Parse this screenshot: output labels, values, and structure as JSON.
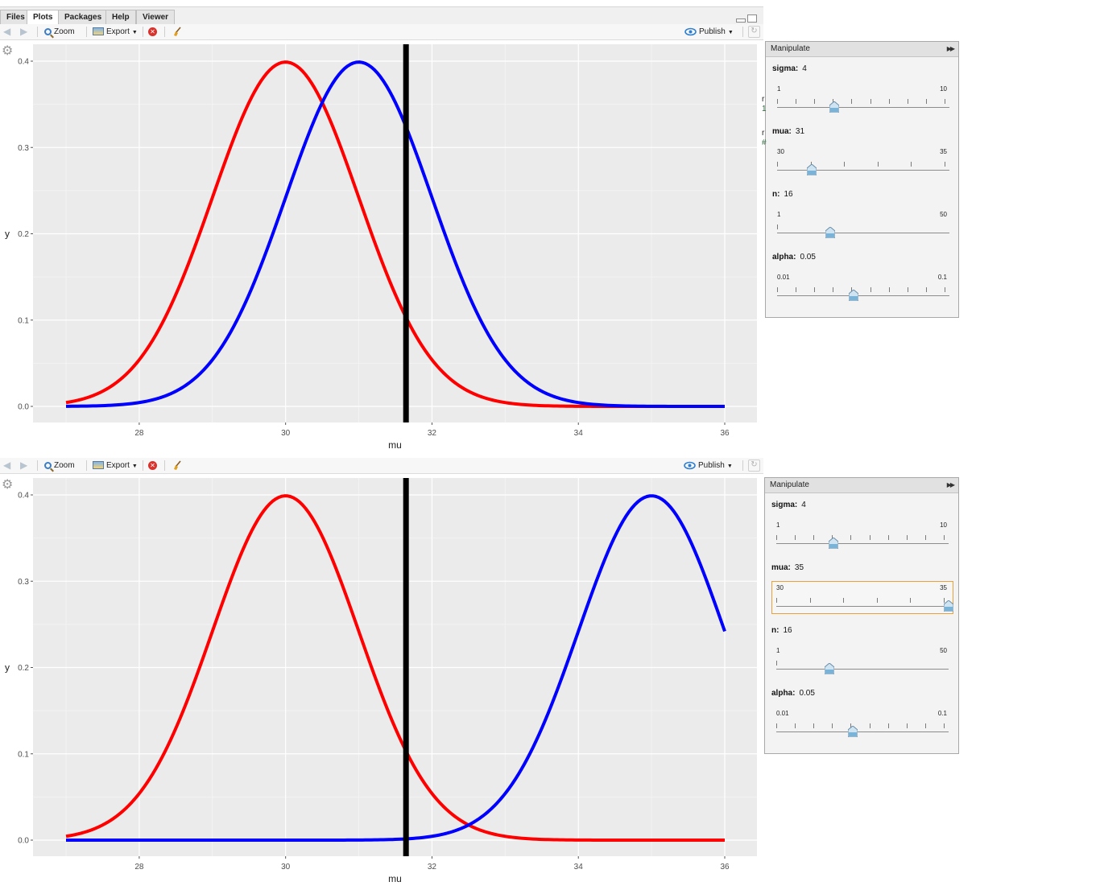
{
  "tabs": [
    "Files",
    "Plots",
    "Packages",
    "Help",
    "Viewer"
  ],
  "active_tab": "Plots",
  "toolbar": {
    "zoom_label": "Zoom",
    "export_label": "Export",
    "publish_label": "Publish"
  },
  "colors": {
    "panel_bg": "#ebebeb",
    "gridline": "#ffffff",
    "null_curve": "#ff0000",
    "alt_curve": "#0000ff",
    "critical_line": "#000000"
  },
  "icons": {
    "back": "arrow-left-icon",
    "forward": "arrow-right-icon",
    "zoom": "magnifier-icon",
    "export": "export-image-icon",
    "remove": "close-circle-icon",
    "clear": "broom-icon",
    "publish": "publish-eye-icon",
    "refresh": "refresh-icon",
    "settings": "gear-icon"
  },
  "panels": [
    {
      "manipulate": {
        "title": "Manipulate",
        "controls": [
          {
            "name": "sigma",
            "label": "sigma:",
            "value": "4",
            "min": "1",
            "max": "10",
            "ticks": 10
          },
          {
            "name": "mua",
            "label": "mua:",
            "value": "31",
            "min": "30",
            "max": "35",
            "ticks": 6
          },
          {
            "name": "n",
            "label": "n:",
            "value": "16",
            "min": "1",
            "max": "50",
            "ticks": 1
          },
          {
            "name": "alpha",
            "label": "alpha:",
            "value": "0.05",
            "min": "0.01",
            "max": "0.1",
            "ticks": 10
          }
        ]
      },
      "chart_data": {
        "type": "line",
        "xlabel": "mu",
        "ylabel": "y",
        "xlim": [
          27,
          36
        ],
        "ylim": [
          0,
          0.4
        ],
        "x_ticks": [
          "28",
          "30",
          "32",
          "34",
          "36"
        ],
        "y_ticks": [
          "0.0",
          "0.1",
          "0.2",
          "0.3",
          "0.4"
        ],
        "grid": true,
        "series": [
          {
            "color": "#ff0000",
            "mean": 30,
            "sd": 1,
            "x_range": [
              27,
              36
            ]
          },
          {
            "color": "#0000ff",
            "mean": 31,
            "sd": 1,
            "x_range": [
              27,
              36
            ]
          }
        ],
        "vline": {
          "x": 31.645,
          "color": "#000000"
        }
      }
    },
    {
      "manipulate": {
        "title": "Manipulate",
        "controls": [
          {
            "name": "sigma",
            "label": "sigma:",
            "value": "4",
            "min": "1",
            "max": "10",
            "ticks": 10
          },
          {
            "name": "mua",
            "label": "mua:",
            "value": "35",
            "min": "30",
            "max": "35",
            "ticks": 6,
            "focused": true
          },
          {
            "name": "n",
            "label": "n:",
            "value": "16",
            "min": "1",
            "max": "50",
            "ticks": 1
          },
          {
            "name": "alpha",
            "label": "alpha:",
            "value": "0.05",
            "min": "0.01",
            "max": "0.1",
            "ticks": 10
          }
        ]
      },
      "chart_data": {
        "type": "line",
        "xlabel": "mu",
        "ylabel": "y",
        "xlim": [
          27,
          36
        ],
        "ylim": [
          0,
          0.4
        ],
        "x_ticks": [
          "28",
          "30",
          "32",
          "34",
          "36"
        ],
        "y_ticks": [
          "0.0",
          "0.1",
          "0.2",
          "0.3",
          "0.4"
        ],
        "grid": true,
        "series": [
          {
            "color": "#ff0000",
            "mean": 30,
            "sd": 1,
            "x_range": [
              27,
              36
            ]
          },
          {
            "color": "#0000ff",
            "mean": 35,
            "sd": 1,
            "x_range": [
              27,
              36
            ]
          }
        ],
        "vline": {
          "x": 31.645,
          "color": "#000000"
        }
      }
    }
  ]
}
